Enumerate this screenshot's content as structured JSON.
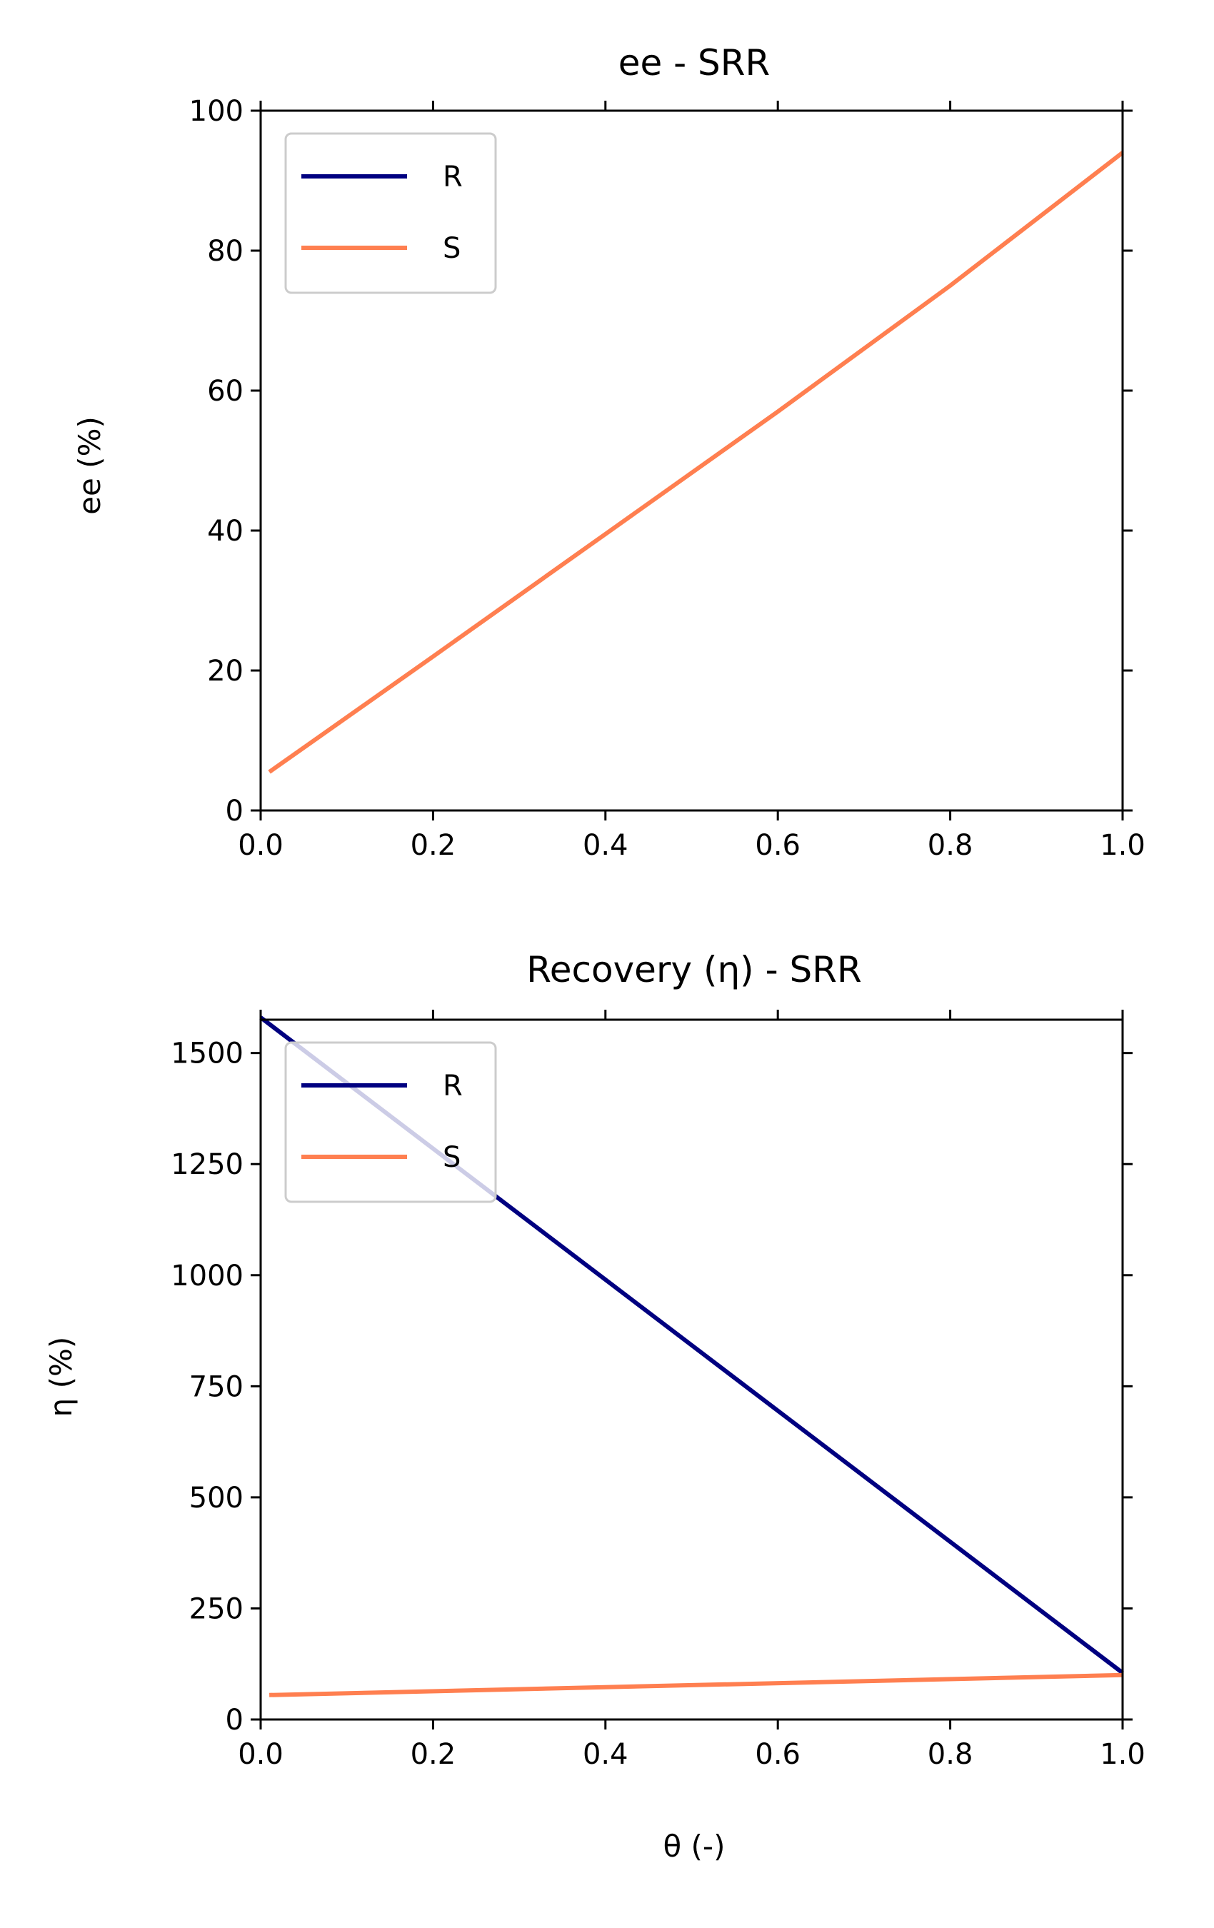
{
  "chart_data": [
    {
      "type": "line",
      "title": "ee - SRR",
      "xlabel": "",
      "ylabel": "ee (%)",
      "xlim": [
        0.0,
        1.0
      ],
      "ylim": [
        0,
        100
      ],
      "xticks": [
        0.0,
        0.2,
        0.4,
        0.6,
        0.8,
        1.0
      ],
      "xtick_labels": [
        "0.0",
        "0.2",
        "0.4",
        "0.6",
        "0.8",
        "1.0"
      ],
      "yticks": [
        0,
        20,
        40,
        60,
        80,
        100
      ],
      "ytick_labels": [
        "0",
        "20",
        "40",
        "60",
        "80",
        "100"
      ],
      "grid": false,
      "legend_position": "upper-left",
      "legend": [
        "R",
        "S"
      ],
      "series": [
        {
          "name": "R",
          "color": "#000080",
          "x": [],
          "y": []
        },
        {
          "name": "S",
          "color": "#ff7f50",
          "x": [
            0.01,
            0.2,
            0.4,
            0.6,
            0.8,
            1.0
          ],
          "y": [
            5.5,
            22.0,
            39.5,
            57.0,
            75.0,
            94.0
          ]
        }
      ]
    },
    {
      "type": "line",
      "title": "Recovery (η) - SRR",
      "xlabel": "θ (-)",
      "ylabel": "η (%)",
      "xlim": [
        0.0,
        1.0
      ],
      "ylim": [
        0,
        1575
      ],
      "xticks": [
        0.0,
        0.2,
        0.4,
        0.6,
        0.8,
        1.0
      ],
      "xtick_labels": [
        "0.0",
        "0.2",
        "0.4",
        "0.6",
        "0.8",
        "1.0"
      ],
      "yticks": [
        0,
        250,
        500,
        750,
        1000,
        1250,
        1500
      ],
      "ytick_labels": [
        "0",
        "250",
        "500",
        "750",
        "1000",
        "1250",
        "1500"
      ],
      "grid": false,
      "legend_position": "upper-left",
      "legend": [
        "R",
        "S"
      ],
      "series": [
        {
          "name": "R",
          "color": "#000080",
          "x": [
            0.0,
            1.0
          ],
          "y": [
            1580,
            105
          ]
        },
        {
          "name": "S",
          "color": "#ff7f50",
          "x": [
            0.01,
            1.0
          ],
          "y": [
            55,
            100
          ]
        }
      ]
    }
  ]
}
